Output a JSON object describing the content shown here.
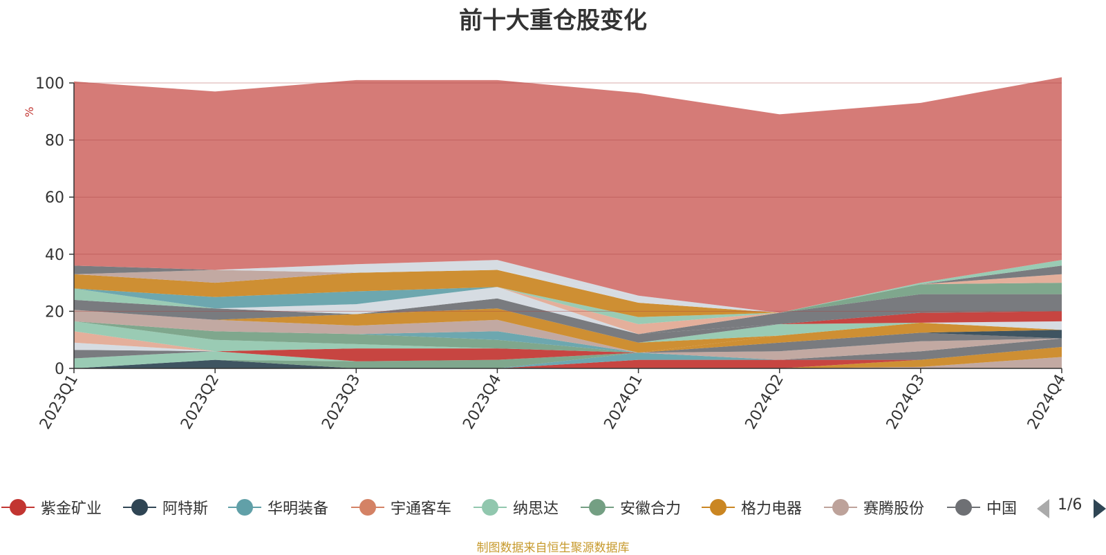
{
  "source_note": "制图数据来自恒生聚源数据库",
  "pager": {
    "text": "1/6"
  },
  "legend": [
    {
      "label": "紫金矿业",
      "color": "#c23531"
    },
    {
      "label": "阿特斯",
      "color": "#2f4554"
    },
    {
      "label": "华明装备",
      "color": "#61a0a8"
    },
    {
      "label": "宇通客车",
      "color": "#d48265"
    },
    {
      "label": "纳思达",
      "color": "#91c7ae"
    },
    {
      "label": "安徽合力",
      "color": "#749f83"
    },
    {
      "label": "格力电器",
      "color": "#ca8622"
    },
    {
      "label": "赛腾股份",
      "color": "#bda29a"
    },
    {
      "label": "中国",
      "color": "#6e7074"
    }
  ],
  "chart_data": {
    "type": "area",
    "stacked": true,
    "title": "前十大重仓股变化",
    "ylabel": "%",
    "ylim": [
      0,
      100
    ],
    "yticks": [
      0,
      20,
      40,
      60,
      80,
      100
    ],
    "categories": [
      "2023Q1",
      "2023Q2",
      "2023Q3",
      "2023Q4",
      "2024Q1",
      "2024Q2",
      "2024Q3",
      "2024Q4"
    ],
    "grid": true,
    "series": [
      {
        "color": "#bda29a",
        "values": [
          0,
          0,
          0,
          0,
          0,
          0,
          0.5,
          4
        ]
      },
      {
        "color": "#ca8622",
        "values": [
          0,
          0,
          0,
          0,
          0,
          0,
          2.5,
          3.5
        ]
      },
      {
        "color": "#c23531",
        "values": [
          0,
          0,
          0,
          0,
          3,
          3,
          0,
          0
        ]
      },
      {
        "color": "#2f4554",
        "values": [
          0,
          3,
          0,
          0,
          0,
          0,
          0,
          0
        ]
      },
      {
        "color": "#61a0a8",
        "values": [
          0,
          0,
          0,
          0,
          2.5,
          0,
          0,
          0
        ]
      },
      {
        "color": "#749f83",
        "values": [
          0,
          0,
          2.5,
          3,
          0,
          0,
          0,
          0
        ]
      },
      {
        "color": "#91c7ae",
        "values": [
          3.5,
          3,
          0,
          0,
          0,
          0,
          0,
          0
        ]
      },
      {
        "color": "#6e7074",
        "values": [
          3,
          0,
          0,
          0,
          0,
          0,
          3,
          3
        ]
      },
      {
        "color": "#bda29a",
        "values": [
          0,
          0,
          0,
          0,
          0,
          3,
          3.5,
          0
        ]
      },
      {
        "color": "#c23531",
        "values": [
          0,
          0,
          4.5,
          4,
          0,
          0,
          0,
          0
        ]
      },
      {
        "color": "#d3d9e0",
        "values": [
          2.5,
          0,
          0,
          0,
          0,
          0,
          0,
          0
        ]
      },
      {
        "color": "#e2a892",
        "values": [
          4,
          0,
          0,
          0,
          0,
          0,
          0,
          0
        ]
      },
      {
        "color": "#91c7ae",
        "values": [
          3.5,
          4,
          1.5,
          0,
          0,
          0,
          0,
          0
        ]
      },
      {
        "color": "#749f83",
        "values": [
          0,
          3,
          3.5,
          3,
          0,
          0,
          0,
          0
        ]
      },
      {
        "color": "#61a0a8",
        "values": [
          0,
          0,
          0,
          3,
          0,
          0,
          0,
          0
        ]
      },
      {
        "color": "#6e7074",
        "values": [
          0,
          0,
          0,
          0,
          0,
          3,
          3,
          0
        ]
      },
      {
        "color": "#2f4554",
        "values": [
          0,
          0,
          0,
          0,
          0,
          0,
          0,
          3
        ]
      },
      {
        "color": "#ca8622",
        "values": [
          0,
          0,
          0,
          0,
          0,
          2.5,
          3.5,
          0
        ]
      },
      {
        "color": "#d3d9e0",
        "values": [
          0,
          0,
          0,
          0,
          0,
          0,
          0,
          3
        ]
      },
      {
        "color": "#bda29a",
        "values": [
          4,
          4,
          3,
          4,
          0,
          0,
          0,
          0
        ]
      },
      {
        "color": "#ca8622",
        "values": [
          0,
          0,
          4,
          4,
          3.5,
          0,
          0,
          0
        ]
      },
      {
        "color": "#91c7ae",
        "values": [
          0,
          0,
          0,
          0,
          0,
          4,
          0,
          0
        ]
      },
      {
        "color": "#6e7074",
        "values": [
          3.5,
          4,
          0,
          3.5,
          3,
          0,
          0,
          0
        ]
      },
      {
        "color": "#c23531",
        "values": [
          0,
          0,
          0,
          0,
          0,
          0,
          3.5,
          3.5
        ]
      },
      {
        "color": "#91c7ae",
        "values": [
          4,
          0,
          0,
          0,
          0,
          0,
          0,
          0
        ]
      },
      {
        "color": "#d3d9e0",
        "values": [
          0,
          0,
          3.5,
          4,
          0,
          0,
          0,
          0
        ]
      },
      {
        "color": "#6e7074",
        "values": [
          0,
          0,
          0,
          0,
          0,
          4,
          6.5,
          6
        ]
      },
      {
        "color": "#e2a892",
        "values": [
          0,
          0,
          0,
          0,
          3.5,
          0,
          0,
          0
        ]
      },
      {
        "color": "#61a0a8",
        "values": [
          0,
          4,
          4.5,
          0,
          0,
          0,
          0,
          0
        ]
      },
      {
        "color": "#91c7ae",
        "values": [
          0,
          0,
          0,
          0,
          2.5,
          0,
          0,
          0
        ]
      },
      {
        "color": "#749f83",
        "values": [
          0,
          0,
          0,
          0,
          0,
          0,
          3.5,
          4
        ]
      },
      {
        "color": "#ca8622",
        "values": [
          5,
          5,
          6.5,
          6,
          5,
          0,
          0,
          0
        ]
      },
      {
        "color": "#e2a892",
        "values": [
          0,
          0,
          0,
          0,
          0,
          0,
          0,
          3
        ]
      },
      {
        "color": "#d3d9e0",
        "values": [
          0,
          0,
          0,
          0,
          2.5,
          0,
          0,
          0
        ]
      },
      {
        "color": "#6e7074",
        "values": [
          0,
          0,
          0,
          0,
          0,
          0,
          0,
          3
        ]
      },
      {
        "color": "#bda29a",
        "values": [
          0,
          4.5,
          0,
          0,
          0,
          0,
          0,
          0
        ]
      },
      {
        "color": "#91c7ae",
        "values": [
          0,
          0,
          0,
          0,
          0,
          0,
          0.5,
          2
        ]
      },
      {
        "color": "#d3d9e0",
        "values": [
          0,
          0,
          3,
          3.5,
          0,
          0,
          0,
          0
        ]
      },
      {
        "color": "#6e7074",
        "values": [
          3,
          0,
          0,
          0,
          0,
          0,
          0,
          0
        ]
      },
      {
        "color": "#d1706b",
        "values": [
          64.5,
          62.5,
          64.5,
          63,
          71,
          69.5,
          63,
          64
        ]
      }
    ]
  }
}
